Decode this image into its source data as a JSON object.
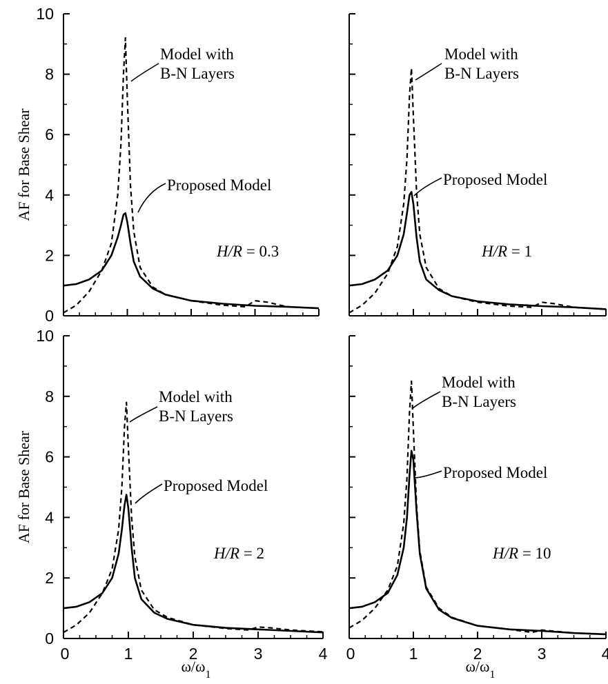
{
  "chart_data": [
    {
      "type": "line",
      "panel": "top-left",
      "ylabel": "AF for Base Shear",
      "xlabel": "",
      "xlim": [
        0,
        4
      ],
      "ylim": [
        0,
        10
      ],
      "x_ticks": [
        "0",
        "1",
        "2",
        "3",
        "4"
      ],
      "y_ticks": [
        "0",
        "2",
        "4",
        "6",
        "8",
        "10"
      ],
      "show_x_tick_labels": false,
      "show_y_tick_labels": true,
      "param": {
        "var": "H/R",
        "eq": " = 0.3"
      },
      "annotations": {
        "bn_line1": "Model with",
        "bn_line2": "B-N Layers",
        "proposed": "Proposed Model"
      },
      "series": [
        {
          "style": "dashed",
          "x": [
            0,
            0.2,
            0.4,
            0.6,
            0.75,
            0.85,
            0.9,
            0.94,
            0.97,
            1.0,
            1.05,
            1.1,
            1.2,
            1.4,
            1.6,
            2.0,
            2.5,
            2.85,
            3.0,
            3.2,
            3.5,
            4.0
          ],
          "y": [
            0.1,
            0.35,
            0.8,
            1.5,
            2.4,
            4.0,
            5.7,
            8.0,
            9.2,
            7.2,
            4.3,
            2.8,
            1.6,
            0.95,
            0.7,
            0.5,
            0.35,
            0.3,
            0.5,
            0.45,
            0.3,
            0.25
          ]
        },
        {
          "style": "solid",
          "x": [
            0,
            0.2,
            0.4,
            0.6,
            0.75,
            0.85,
            0.9,
            0.94,
            0.97,
            1.0,
            1.05,
            1.1,
            1.2,
            1.4,
            1.6,
            2.0,
            2.5,
            3.0,
            3.5,
            4.0
          ],
          "y": [
            1.0,
            1.05,
            1.2,
            1.5,
            2.0,
            2.6,
            3.0,
            3.35,
            3.4,
            3.1,
            2.4,
            1.8,
            1.3,
            0.9,
            0.7,
            0.5,
            0.4,
            0.33,
            0.3,
            0.25
          ]
        }
      ]
    },
    {
      "type": "line",
      "panel": "top-right",
      "ylabel": "",
      "xlabel": "",
      "xlim": [
        0,
        4
      ],
      "ylim": [
        0,
        10
      ],
      "x_ticks": [
        "0",
        "1",
        "2",
        "3",
        "4"
      ],
      "y_ticks": [
        "0",
        "2",
        "4",
        "6",
        "8",
        "10"
      ],
      "show_x_tick_labels": false,
      "show_y_tick_labels": false,
      "param": {
        "var": "H/R",
        "eq": " = 1"
      },
      "annotations": {
        "bn_line1": "Model with",
        "bn_line2": "B-N Layers",
        "proposed": "Proposed Model"
      },
      "series": [
        {
          "style": "dashed",
          "x": [
            0,
            0.2,
            0.4,
            0.6,
            0.75,
            0.85,
            0.9,
            0.94,
            0.97,
            1.0,
            1.05,
            1.1,
            1.2,
            1.4,
            1.6,
            2.0,
            2.5,
            2.85,
            3.0,
            3.2,
            3.5,
            4.0
          ],
          "y": [
            0.1,
            0.35,
            0.75,
            1.4,
            2.3,
            3.7,
            5.2,
            7.3,
            8.2,
            6.6,
            4.1,
            2.7,
            1.6,
            0.9,
            0.65,
            0.45,
            0.32,
            0.28,
            0.45,
            0.4,
            0.28,
            0.22
          ]
        },
        {
          "style": "solid",
          "x": [
            0,
            0.2,
            0.4,
            0.6,
            0.75,
            0.85,
            0.9,
            0.94,
            0.97,
            1.0,
            1.05,
            1.1,
            1.2,
            1.4,
            1.6,
            2.0,
            2.5,
            3.0,
            3.5,
            4.0
          ],
          "y": [
            1.0,
            1.05,
            1.2,
            1.5,
            2.0,
            2.7,
            3.4,
            4.0,
            4.1,
            3.7,
            2.6,
            1.8,
            1.2,
            0.85,
            0.65,
            0.48,
            0.38,
            0.32,
            0.28,
            0.22
          ]
        }
      ]
    },
    {
      "type": "line",
      "panel": "bottom-left",
      "ylabel": "AF for Base Shear",
      "xlabel": "ω/ω1",
      "xlim": [
        0,
        4
      ],
      "ylim": [
        0,
        10
      ],
      "x_ticks": [
        "0",
        "1",
        "2",
        "3",
        "4"
      ],
      "y_ticks": [
        "0",
        "2",
        "4",
        "6",
        "8",
        "10"
      ],
      "show_x_tick_labels": true,
      "show_y_tick_labels": true,
      "param": {
        "var": "H/R",
        "eq": " = 2"
      },
      "annotations": {
        "bn_line1": "Model with",
        "bn_line2": "B-N Layers",
        "proposed": "Proposed Model"
      },
      "series": [
        {
          "style": "dashed",
          "x": [
            0,
            0.2,
            0.4,
            0.6,
            0.75,
            0.85,
            0.9,
            0.94,
            0.97,
            1.0,
            1.05,
            1.1,
            1.2,
            1.4,
            1.6,
            2.0,
            2.5,
            2.85,
            3.0,
            3.2,
            3.5,
            4.0
          ],
          "y": [
            0.2,
            0.45,
            0.85,
            1.5,
            2.3,
            3.6,
            5.0,
            7.0,
            7.8,
            6.3,
            4.0,
            2.7,
            1.6,
            0.95,
            0.7,
            0.45,
            0.33,
            0.28,
            0.38,
            0.35,
            0.28,
            0.22
          ]
        },
        {
          "style": "solid",
          "x": [
            0,
            0.2,
            0.4,
            0.6,
            0.75,
            0.85,
            0.9,
            0.94,
            0.97,
            1.0,
            1.05,
            1.1,
            1.2,
            1.4,
            1.6,
            2.0,
            2.5,
            3.0,
            3.5,
            4.0
          ],
          "y": [
            1.0,
            1.05,
            1.2,
            1.5,
            2.0,
            2.8,
            3.6,
            4.4,
            4.75,
            4.3,
            3.0,
            2.0,
            1.3,
            0.85,
            0.65,
            0.45,
            0.35,
            0.3,
            0.25,
            0.2
          ]
        }
      ]
    },
    {
      "type": "line",
      "panel": "bottom-right",
      "ylabel": "",
      "xlabel": "ω/ω1",
      "xlim": [
        0,
        4
      ],
      "ylim": [
        0,
        10
      ],
      "x_ticks": [
        "0",
        "1",
        "2",
        "3",
        "4"
      ],
      "y_ticks": [
        "0",
        "2",
        "4",
        "6",
        "8",
        "10"
      ],
      "show_x_tick_labels": true,
      "show_y_tick_labels": false,
      "param": {
        "var": "H/R",
        "eq": " = 10"
      },
      "annotations": {
        "bn_line1": "Model with",
        "bn_line2": "B-N Layers",
        "proposed": "Proposed Model"
      },
      "series": [
        {
          "style": "dashed",
          "x": [
            0,
            0.2,
            0.4,
            0.6,
            0.75,
            0.85,
            0.9,
            0.94,
            0.97,
            1.0,
            1.05,
            1.1,
            1.2,
            1.4,
            1.6,
            2.0,
            2.5,
            2.85,
            3.0,
            3.2,
            3.5,
            4.0
          ],
          "y": [
            0.35,
            0.6,
            1.0,
            1.6,
            2.4,
            3.8,
            5.3,
            7.5,
            8.5,
            6.9,
            4.4,
            2.9,
            1.7,
            1.0,
            0.7,
            0.42,
            0.3,
            0.2,
            0.28,
            0.24,
            0.18,
            0.14
          ]
        },
        {
          "style": "solid",
          "x": [
            0,
            0.2,
            0.4,
            0.6,
            0.75,
            0.85,
            0.9,
            0.94,
            0.97,
            1.0,
            1.05,
            1.1,
            1.2,
            1.4,
            1.6,
            2.0,
            2.5,
            3.0,
            3.5,
            4.0
          ],
          "y": [
            1.0,
            1.05,
            1.2,
            1.5,
            2.1,
            3.0,
            4.0,
            5.4,
            6.2,
            5.9,
            4.2,
            2.8,
            1.65,
            0.95,
            0.68,
            0.42,
            0.3,
            0.25,
            0.18,
            0.14
          ]
        }
      ]
    }
  ]
}
